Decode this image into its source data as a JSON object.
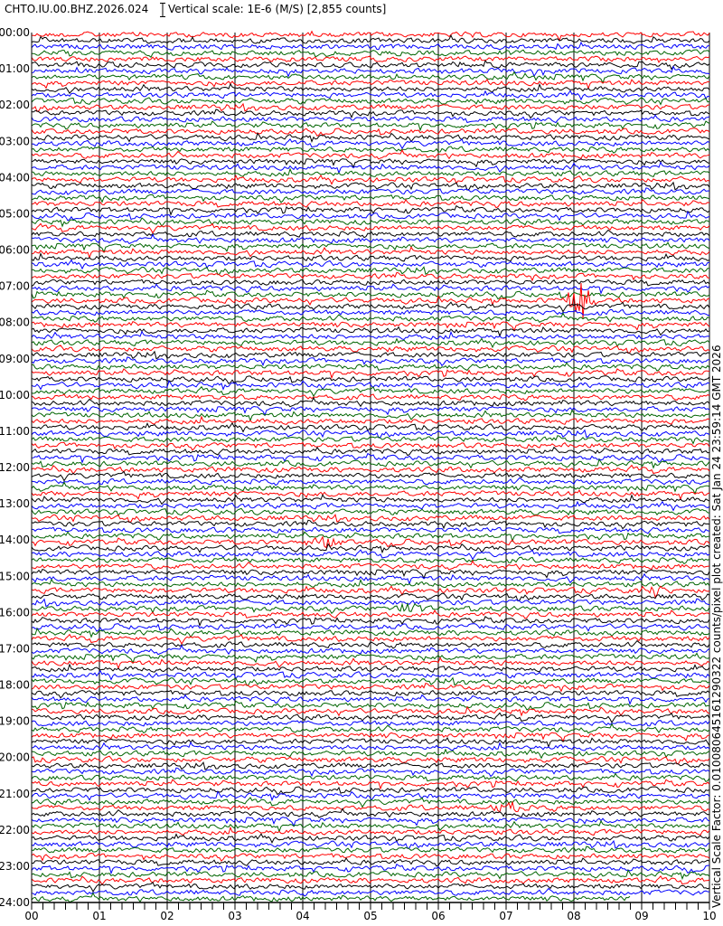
{
  "header": {
    "title": "CHTO.IU.00.BHZ.2026.024",
    "scale_label": "Vertical scale: 1E-6 (M/S) [2,855 counts]"
  },
  "side_note": "Vertical Scale Factor: 0.010080645161290322 counts/pixel plot created: Sat Jan 24 23:59:14 GMT 2026",
  "chart_data": {
    "type": "line",
    "title": "CHTO.IU.00.BHZ.2026.024",
    "y_tick_labels": [
      "00:00",
      "01:00",
      "02:00",
      "03:00",
      "04:00",
      "05:00",
      "06:00",
      "07:00",
      "08:00",
      "09:00",
      "10:00",
      "11:00",
      "12:00",
      "13:00",
      "14:00",
      "15:00",
      "16:00",
      "17:00",
      "18:00",
      "19:00",
      "20:00",
      "21:00",
      "22:00",
      "23:00",
      "24:00"
    ],
    "x_tick_labels": [
      "00",
      "01",
      "02",
      "03",
      "04",
      "05",
      "06",
      "07",
      "08",
      "09",
      "10"
    ],
    "xlim": [
      0,
      10
    ],
    "ylim": [
      "00:00",
      "24:00"
    ],
    "lines_per_hour": 6,
    "trace_colors": [
      "#ff0000",
      "#000000",
      "#0000ff",
      "#006400"
    ],
    "grid": true,
    "last_trace_end_minute": 8.85,
    "events": [
      {
        "time": "07:20",
        "minute": 8.1,
        "color": "#ff0000",
        "amplitude": 3.5
      },
      {
        "time": "14:00",
        "minute": 4.3,
        "color": "#000000",
        "amplitude": 1.2
      },
      {
        "time": "15:20",
        "minute": 9.2,
        "color": "#ff0000",
        "amplitude": 1.0
      },
      {
        "time": "15:50",
        "minute": 5.5,
        "color": "#006400",
        "amplitude": 1.4
      },
      {
        "time": "21:20",
        "minute": 7.0,
        "color": "#000000",
        "amplitude": 1.5
      }
    ]
  }
}
